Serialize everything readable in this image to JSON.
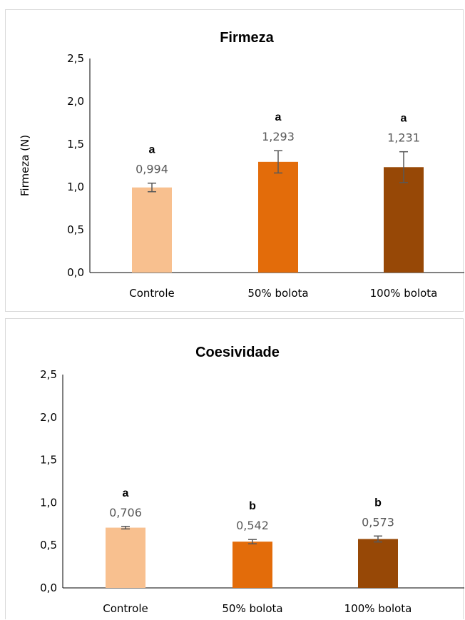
{
  "chart_data": [
    {
      "type": "bar",
      "title": "Firmeza",
      "ylabel": "Firmeza (N)",
      "xlabel": "",
      "categories": [
        "Controle",
        "50% bolota",
        "100% bolota"
      ],
      "values": [
        0.994,
        1.293,
        1.231
      ],
      "value_labels": [
        "0,994",
        "1,293",
        "1,231"
      ],
      "error": [
        0.05,
        0.13,
        0.18
      ],
      "significance": [
        "a",
        "a",
        "a"
      ],
      "ylim": [
        0,
        2.5
      ],
      "yticks": [
        0,
        0.5,
        1.0,
        1.5,
        2.0,
        2.5
      ],
      "ytick_labels": [
        "0,0",
        "0,5",
        "1,0",
        "1,5",
        "2,0",
        "2,5"
      ],
      "colors": [
        "#f8c08f",
        "#e36c0a",
        "#974806"
      ],
      "grid": false,
      "legend": "none"
    },
    {
      "type": "bar",
      "title": "Coesividade",
      "ylabel": "",
      "xlabel": "",
      "categories": [
        "Controle",
        "50% bolota",
        "100% bolota"
      ],
      "values": [
        0.706,
        0.542,
        0.573
      ],
      "value_labels": [
        "0,706",
        "0,542",
        "0,573"
      ],
      "error": [
        0.015,
        0.025,
        0.035
      ],
      "significance": [
        "a",
        "b",
        "b"
      ],
      "ylim": [
        0,
        2.5
      ],
      "yticks": [
        0,
        0.5,
        1.0,
        1.5,
        2.0,
        2.5
      ],
      "ytick_labels": [
        "0,0",
        "0,5",
        "1,0",
        "1,5",
        "2,0",
        "2,5"
      ],
      "colors": [
        "#f8c08f",
        "#e36c0a",
        "#974806"
      ],
      "grid": false,
      "legend": "none"
    }
  ]
}
